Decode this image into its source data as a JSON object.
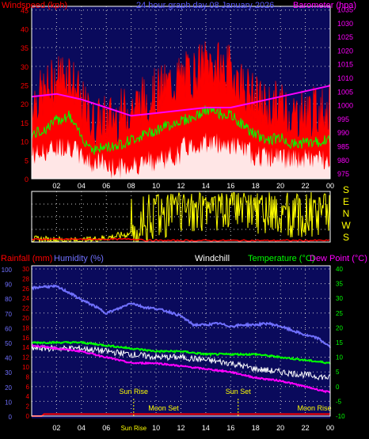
{
  "colors": {
    "background": "#000000",
    "plot_background": "#0a0a5c",
    "grid": "#c8c8c8",
    "windspeed": "#ff0000",
    "gust": "#ffffff",
    "avg_wind": "#00ff00",
    "barometer": "#ff00ff",
    "wind_direction": "#ffff00",
    "rainfall": "#ff0000",
    "humidity": "#7070ff",
    "windchill": "#ffffff",
    "temperature": "#00ff00",
    "dew_point": "#ff00ff",
    "annotation": "#ffff00"
  },
  "chart_data": [
    {
      "type": "line",
      "title": "24 hour graph day  08 January 2026",
      "ylabel": "Windspeed (kph)",
      "y2label": "Barometer (hpa)",
      "ylim": [
        0,
        46
      ],
      "y2lim": [
        973,
        1036
      ],
      "yticks": [
        "0",
        "5",
        "10",
        "15",
        "20",
        "25",
        "30",
        "35",
        "40",
        "45"
      ],
      "y2ticks": [
        "975",
        "980",
        "985",
        "990",
        "995",
        "1000",
        "1005",
        "1010",
        "1015",
        "1020",
        "1025",
        "1030",
        "1035"
      ],
      "x_ticks": [
        "02",
        "04",
        "06",
        "08",
        "10",
        "12",
        "14",
        "16",
        "18",
        "20",
        "22",
        "00"
      ],
      "grid": true,
      "series": [
        {
          "name": "Windspeed (kph)",
          "x": [
            0,
            1,
            2,
            3,
            4,
            5,
            6,
            7,
            8,
            9,
            10,
            11,
            12,
            13,
            14,
            15,
            16,
            17,
            18,
            19,
            20,
            21,
            22,
            23,
            24
          ],
          "values": [
            18,
            20,
            24,
            26,
            17,
            12,
            13,
            14,
            16,
            18,
            20,
            22,
            24,
            25,
            28,
            27,
            26,
            22,
            18,
            16,
            17,
            14,
            15,
            15,
            16
          ]
        },
        {
          "name": "Barometer (hpa)",
          "x": [
            0,
            2,
            4,
            6,
            8,
            10,
            12,
            14,
            16,
            18,
            20,
            22,
            24
          ],
          "values": [
            1003,
            1004,
            1002,
            999,
            996,
            997,
            998,
            999,
            999,
            1001,
            1003,
            1005,
            1007
          ]
        }
      ]
    },
    {
      "type": "line",
      "ylabel": "",
      "ylim": [
        0,
        360
      ],
      "side_labels": [
        "S",
        "E",
        "N",
        "W",
        "S"
      ],
      "x_ticks": [
        "02",
        "04",
        "06",
        "08",
        "10",
        "12",
        "14",
        "16",
        "18",
        "20",
        "22",
        "00"
      ],
      "grid": true,
      "series": [
        {
          "name": "Wind direction",
          "x": [
            0,
            2,
            4,
            6,
            8,
            10,
            12,
            14,
            16,
            18,
            20,
            22,
            24
          ],
          "values": [
            20,
            15,
            10,
            30,
            60,
            150,
            200,
            210,
            220,
            190,
            170,
            175,
            180
          ]
        }
      ]
    },
    {
      "type": "line",
      "title": "",
      "legend": [
        "Rainfall (mm)",
        "Humidity (%)",
        "Windchill",
        "Temperature (°C)",
        "Dew Point (°C)"
      ],
      "ylim_rain": [
        0,
        30
      ],
      "ylim_humidity": [
        0,
        100
      ],
      "ylim_temp": [
        -10,
        40
      ],
      "yticks_rain": [
        "0",
        "2",
        "4",
        "6",
        "8",
        "10",
        "12",
        "14",
        "16",
        "18",
        "20",
        "22",
        "24",
        "26",
        "28",
        "30"
      ],
      "yticks_humidity": [
        "0",
        "10",
        "20",
        "30",
        "40",
        "50",
        "60",
        "70",
        "80",
        "90",
        "100"
      ],
      "yticks_temp": [
        "-10",
        "-5",
        "0",
        "5",
        "10",
        "15",
        "20",
        "25",
        "30",
        "35",
        "40"
      ],
      "x_ticks": [
        "02",
        "04",
        "06",
        "08",
        "10",
        "12",
        "14",
        "16",
        "18",
        "20",
        "22",
        "00"
      ],
      "grid": true,
      "annotations": [
        {
          "text": "Sun Rise",
          "hour": 8.2,
          "row": "upper"
        },
        {
          "text": "Sun Set",
          "hour": 16.6,
          "row": "upper"
        },
        {
          "text": "Moon Set",
          "hour": 10.6,
          "row": "lower"
        },
        {
          "text": "Moon Rise",
          "hour": 23.3,
          "row": "lower"
        },
        {
          "text": "Sun Rise",
          "hour": 8.2,
          "row": "axis"
        }
      ],
      "series": [
        {
          "name": "Humidity (%)",
          "x": [
            0,
            1,
            2,
            3,
            4,
            5,
            6,
            7,
            8,
            9,
            10,
            11,
            12,
            13,
            14,
            15,
            16,
            17,
            18,
            19,
            20,
            21,
            22,
            23,
            24
          ],
          "values": [
            87,
            88,
            88,
            84,
            79,
            75,
            70,
            73,
            77,
            74,
            73,
            71,
            68,
            62,
            62,
            63,
            61,
            62,
            62,
            63,
            61,
            58,
            55,
            53,
            47
          ]
        },
        {
          "name": "Temperature (°C)",
          "x": [
            0,
            2,
            4,
            6,
            8,
            10,
            12,
            14,
            16,
            18,
            20,
            22,
            24
          ],
          "values": [
            15,
            15,
            15,
            14,
            13,
            12,
            12,
            11,
            11,
            11,
            10,
            9,
            8
          ]
        },
        {
          "name": "Windchill",
          "x": [
            0,
            2,
            4,
            6,
            8,
            10,
            12,
            14,
            16,
            18,
            20,
            22,
            24
          ],
          "values": [
            13,
            13,
            13,
            12,
            11,
            10,
            10,
            9,
            8,
            6,
            5,
            4,
            3
          ]
        },
        {
          "name": "Dew Point (°C)",
          "x": [
            0,
            2,
            4,
            6,
            8,
            10,
            12,
            14,
            16,
            18,
            20,
            22,
            24
          ],
          "values": [
            14,
            13,
            12,
            10,
            8,
            8,
            7,
            6,
            5,
            3,
            2,
            0,
            -2
          ]
        },
        {
          "name": "Rainfall (mm)",
          "x": [
            0,
            0.8,
            1.0,
            24
          ],
          "values": [
            0,
            0,
            0.4,
            0.4
          ]
        }
      ]
    }
  ]
}
